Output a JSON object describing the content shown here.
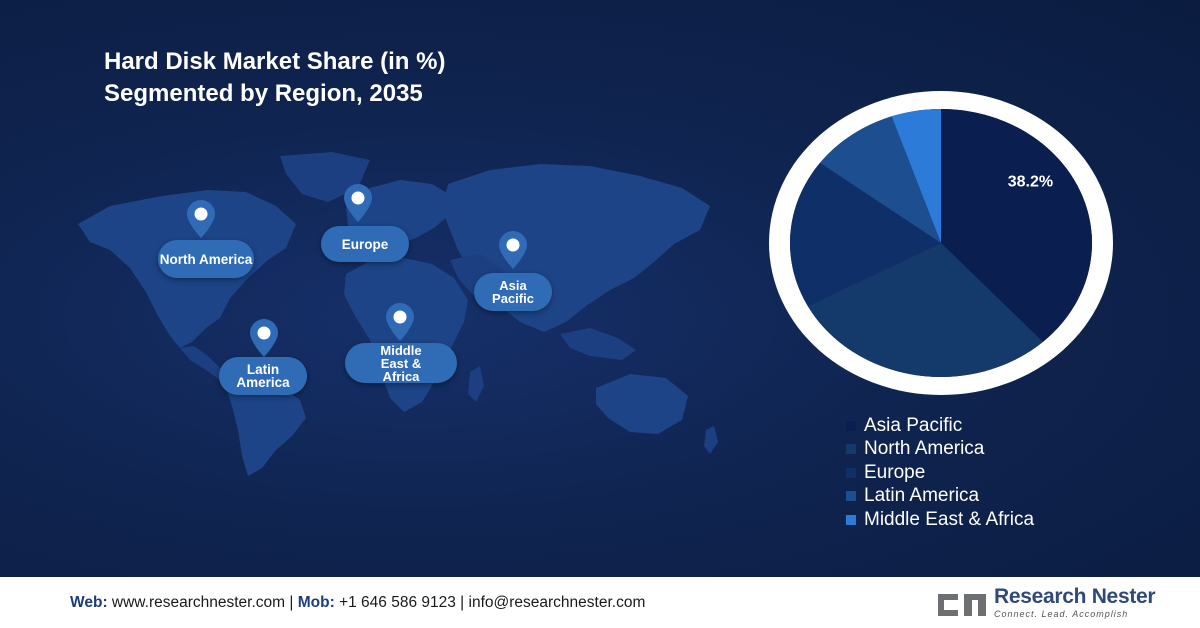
{
  "title_line1": "Hard Disk Market Share (in %)",
  "title_line2": "Segmented by Region, 2035",
  "regions": {
    "north_america": "North America",
    "europe": "Europe",
    "asia_pacific": "Asia Pacific",
    "latin_america": "Latin America",
    "mea": "Middle East & Africa"
  },
  "chart_data": {
    "type": "pie",
    "categories": [
      "Asia Pacific",
      "North America",
      "Europe",
      "Latin America",
      "Middle East & Africa"
    ],
    "values": [
      38.2,
      29.0,
      18.0,
      9.5,
      5.3
    ],
    "value_labels": [
      "38.2%",
      "",
      "",
      "",
      ""
    ],
    "colors": [
      "#0a1e50",
      "#143a6c",
      "#0f2f68",
      "#1d4e8f",
      "#2d7bd8"
    ],
    "legend_position": "bottom-right"
  },
  "footer": {
    "web_label": "Web:",
    "web_value": "www.researchnester.com",
    "sep1": "|",
    "mob_label": "Mob:",
    "mob_value": "+1 646 586 9123",
    "sep2": "|",
    "email": "info@researchnester.com"
  },
  "logo": {
    "name": "Research Nester",
    "tagline": "Connect. Lead. Accomplish"
  }
}
